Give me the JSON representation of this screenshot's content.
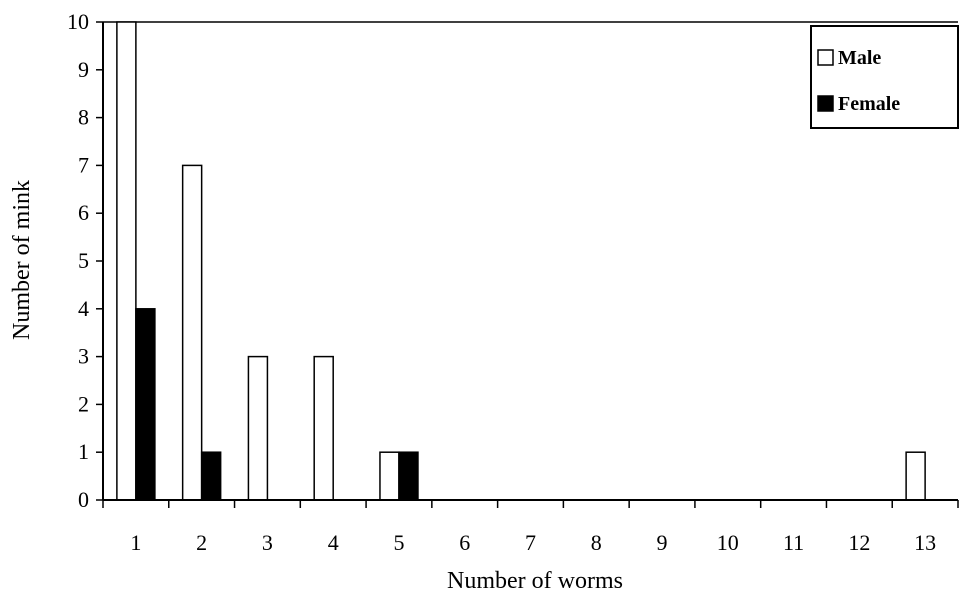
{
  "chart_data": {
    "type": "bar",
    "title": "",
    "xlabel": "Number of worms",
    "ylabel": "Number of mink",
    "categories": [
      "1",
      "2",
      "3",
      "4",
      "5",
      "6",
      "7",
      "8",
      "9",
      "10",
      "11",
      "12",
      "13"
    ],
    "yticks": [
      "0",
      "1",
      "2",
      "3",
      "4",
      "5",
      "6",
      "7",
      "8",
      "9",
      "10"
    ],
    "ylim": [
      0,
      10
    ],
    "grid": false,
    "legend_position": "top-right",
    "series": [
      {
        "name": "Male",
        "values": [
          10,
          7,
          3,
          3,
          1,
          0,
          0,
          0,
          0,
          0,
          0,
          0,
          1
        ],
        "fill": "#ffffff"
      },
      {
        "name": "Female",
        "values": [
          4,
          1,
          0,
          0,
          1,
          0,
          0,
          0,
          0,
          0,
          0,
          0,
          0
        ],
        "fill": "#000000"
      }
    ]
  }
}
